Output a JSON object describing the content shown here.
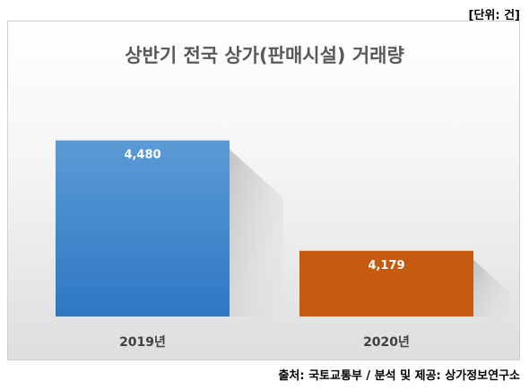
{
  "unit_label": "[단위: 건]",
  "source_label": "출처: 국토교통부 / 분석 및 제공: 상가정보연구소",
  "chart_data": {
    "type": "bar",
    "title": "상반기 전국 상가(판매시설) 거래량",
    "categories": [
      "2019년",
      "2020년"
    ],
    "values": [
      4480,
      4179
    ],
    "value_labels": [
      "4,480",
      "4,179"
    ],
    "colors": [
      "#3f86cf",
      "#c55a11"
    ],
    "ylim": [
      4000,
      4550
    ],
    "grid": false,
    "legend": "none"
  }
}
